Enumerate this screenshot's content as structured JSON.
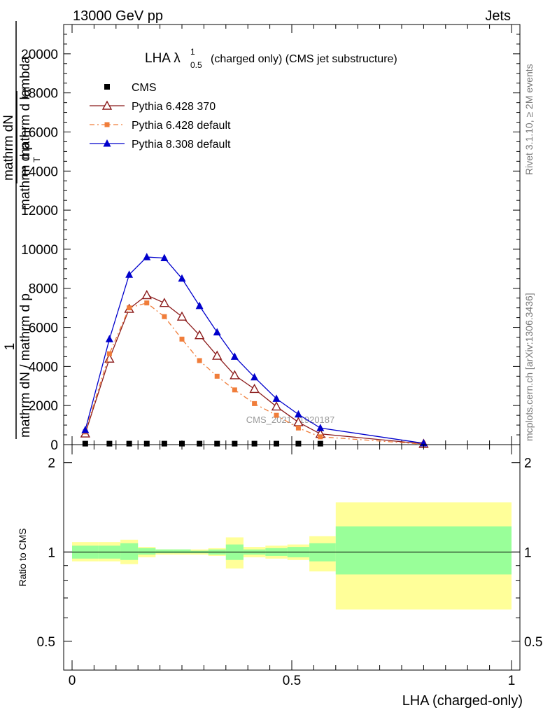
{
  "header": {
    "beam": "13000 GeV pp",
    "process": "Jets",
    "side_top": "Rivet 3.1.10, ≥ 2M events",
    "side_bottom": "mcplots.cern.ch [arXiv:1306.3436]",
    "watermark": "CMS_2021_I1920187"
  },
  "chart_data": [
    {
      "type": "line",
      "title": "LHA λ",
      "title_sup": "1",
      "title_sub": "0.5",
      "title_rest": "(charged only) (CMS jet substructure)",
      "xlabel": "LHA (charged-only)",
      "ylabel_parts": [
        "1",
        "mathrm dN / mathrm d p",
        "mathrm dN",
        "mathrm d p",
        "T",
        "mathrm d lambda"
      ],
      "xlim": [
        0,
        1
      ],
      "ylim": [
        0,
        21500
      ],
      "y_ticks": [
        0,
        2000,
        4000,
        6000,
        8000,
        10000,
        12000,
        14000,
        16000,
        18000,
        20000
      ],
      "y_tick_labels": [
        "0",
        "2000",
        "4000",
        "6000",
        "8000",
        "10000",
        "12000",
        "14000",
        "16000",
        "18000",
        "20000"
      ],
      "x_ticks": [
        0,
        0.5,
        1
      ],
      "x_tick_labels": [
        "0",
        "0.5",
        "1"
      ],
      "x": [
        0.03,
        0.085,
        0.13,
        0.17,
        0.21,
        0.25,
        0.29,
        0.33,
        0.37,
        0.415,
        0.465,
        0.515,
        0.565,
        0.8
      ],
      "series": [
        {
          "name": "CMS",
          "color": "#000000",
          "marker": "square",
          "values": [
            50,
            50,
            50,
            50,
            50,
            50,
            50,
            50,
            50,
            50,
            50,
            50,
            50,
            50
          ]
        },
        {
          "name": "Pythia 6.428 370",
          "color": "#8b1a1a",
          "marker": "triangle-open",
          "values": [
            570,
            4400,
            6950,
            7650,
            7250,
            6550,
            5600,
            4550,
            3550,
            2850,
            1950,
            1150,
            550,
            40
          ]
        },
        {
          "name": "Pythia 6.428 default",
          "color": "#f07d3a",
          "marker": "square-small",
          "dash": "7,4,2,4",
          "values": [
            650,
            4650,
            7000,
            7250,
            6550,
            5400,
            4300,
            3500,
            2800,
            2100,
            1500,
            850,
            400,
            25
          ]
        },
        {
          "name": "Pythia 8.308 default",
          "color": "#0000cc",
          "marker": "triangle",
          "values": [
            750,
            5400,
            8700,
            9600,
            9550,
            8500,
            7100,
            5750,
            4500,
            3450,
            2350,
            1550,
            850,
            70
          ]
        }
      ]
    },
    {
      "type": "area",
      "ylabel": "Ratio to CMS",
      "xlim": [
        0,
        1
      ],
      "ylim": [
        0.4,
        2.3
      ],
      "y_ticks": [
        0.5,
        1,
        2
      ],
      "y_tick_labels": [
        "0.5",
        "1",
        "2"
      ],
      "bins": [
        {
          "lo": 0.0,
          "hi": 0.06,
          "green": [
            0.95,
            1.05
          ],
          "yellow": [
            0.93,
            1.08
          ]
        },
        {
          "lo": 0.06,
          "hi": 0.11,
          "green": [
            0.95,
            1.05
          ],
          "yellow": [
            0.93,
            1.08
          ]
        },
        {
          "lo": 0.11,
          "hi": 0.15,
          "green": [
            0.94,
            1.07
          ],
          "yellow": [
            0.91,
            1.1
          ]
        },
        {
          "lo": 0.15,
          "hi": 0.19,
          "green": [
            0.98,
            1.03
          ],
          "yellow": [
            0.96,
            1.04
          ]
        },
        {
          "lo": 0.19,
          "hi": 0.23,
          "green": [
            0.99,
            1.02
          ],
          "yellow": [
            0.98,
            1.02
          ]
        },
        {
          "lo": 0.23,
          "hi": 0.27,
          "green": [
            0.99,
            1.02
          ],
          "yellow": [
            0.98,
            1.02
          ]
        },
        {
          "lo": 0.27,
          "hi": 0.31,
          "green": [
            0.99,
            1.01
          ],
          "yellow": [
            0.98,
            1.02
          ]
        },
        {
          "lo": 0.31,
          "hi": 0.35,
          "green": [
            0.98,
            1.02
          ],
          "yellow": [
            0.97,
            1.03
          ]
        },
        {
          "lo": 0.35,
          "hi": 0.39,
          "green": [
            0.94,
            1.06
          ],
          "yellow": [
            0.88,
            1.12
          ]
        },
        {
          "lo": 0.39,
          "hi": 0.44,
          "green": [
            0.98,
            1.02
          ],
          "yellow": [
            0.96,
            1.04
          ]
        },
        {
          "lo": 0.44,
          "hi": 0.49,
          "green": [
            0.97,
            1.03
          ],
          "yellow": [
            0.95,
            1.05
          ]
        },
        {
          "lo": 0.49,
          "hi": 0.54,
          "green": [
            0.96,
            1.04
          ],
          "yellow": [
            0.94,
            1.06
          ]
        },
        {
          "lo": 0.54,
          "hi": 0.6,
          "green": [
            0.93,
            1.07
          ],
          "yellow": [
            0.86,
            1.13
          ]
        },
        {
          "lo": 0.6,
          "hi": 1.0,
          "green": [
            0.84,
            1.22
          ],
          "yellow": [
            0.64,
            1.47
          ]
        }
      ]
    }
  ]
}
